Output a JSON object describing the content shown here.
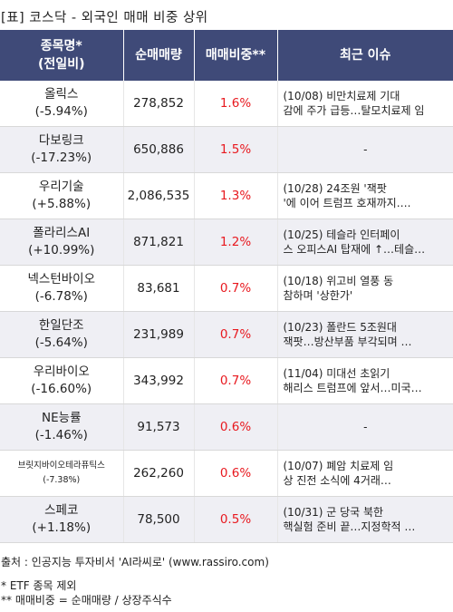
{
  "title": "[표] 코스닥 - 외국인 매매 비중 상위",
  "headers": {
    "name_line1": "종목명*",
    "name_line2": "(전일비)",
    "volume": "순매매량",
    "ratio": "매매비중**",
    "issue": "최근 이슈"
  },
  "rows": [
    {
      "name": "올릭스",
      "change": "(-5.94%)",
      "volume": "278,852",
      "ratio": "1.6%",
      "issue1": "(10/08) 비만치료제 기대",
      "issue2": "감에 주가 급등…탈모치료제 임"
    },
    {
      "name": "다보링크",
      "change": "(-17.23%)",
      "volume": "650,886",
      "ratio": "1.5%",
      "issue1": "-",
      "issue2": ""
    },
    {
      "name": "우리기술",
      "change": "(+5.88%)",
      "volume": "2,086,535",
      "ratio": "1.3%",
      "issue1": "(10/28) 24조원 '잭팟",
      "issue2": "'에 이어 트럼프 호재까지…."
    },
    {
      "name": "폴라리스AI",
      "change": "(+10.99%)",
      "volume": "871,821",
      "ratio": "1.2%",
      "issue1": "(10/25) 테슬라 인터페이",
      "issue2": "스 오피스AI 탑재에 ↑…테슬…"
    },
    {
      "name": "넥스턴바이오",
      "change": "(-6.78%)",
      "volume": "83,681",
      "ratio": "0.7%",
      "issue1": "(10/18) 위고비 열풍 동",
      "issue2": "참하며 '상한가'"
    },
    {
      "name": "한일단조",
      "change": "(-5.64%)",
      "volume": "231,989",
      "ratio": "0.7%",
      "issue1": "(10/23) 폴란드 5조원대",
      "issue2": " 잭팟…방산부품 부각되며 …"
    },
    {
      "name": "우리바이오",
      "change": "(-16.60%)",
      "volume": "343,992",
      "ratio": "0.7%",
      "issue1": "(11/04) 미대선 초읽기",
      "issue2": "해리스 트럼프에 앞서…미국…"
    },
    {
      "name": "NE능률",
      "change": "(-1.46%)",
      "volume": "91,573",
      "ratio": "0.6%",
      "issue1": "-",
      "issue2": ""
    },
    {
      "name": "브릿지바이오테라퓨틱스",
      "change": "(-7.38%)",
      "volume": "262,260",
      "ratio": "0.6%",
      "issue1": "(10/07) 폐암 치료제 임",
      "issue2": "상 진전 소식에 4거래…"
    },
    {
      "name": "스페코",
      "change": "(+1.18%)",
      "volume": "78,500",
      "ratio": "0.5%",
      "issue1": "(10/31) 군 당국 북한",
      "issue2": "핵실험 준비 끝…지정학적 …"
    }
  ],
  "footer": {
    "source": "출처 : 인공지능 투자비서 'AI라씨로' (www.rassiro.com)",
    "note1": "* ETF 종목 제외",
    "note2": "** 매매비중 = 순매매량 / 상장주식수"
  },
  "colors": {
    "header_bg": "#3f4a78",
    "header_text": "#ffffff",
    "ratio_text": "#e8191f",
    "stripe_bg": "#efeff4"
  }
}
